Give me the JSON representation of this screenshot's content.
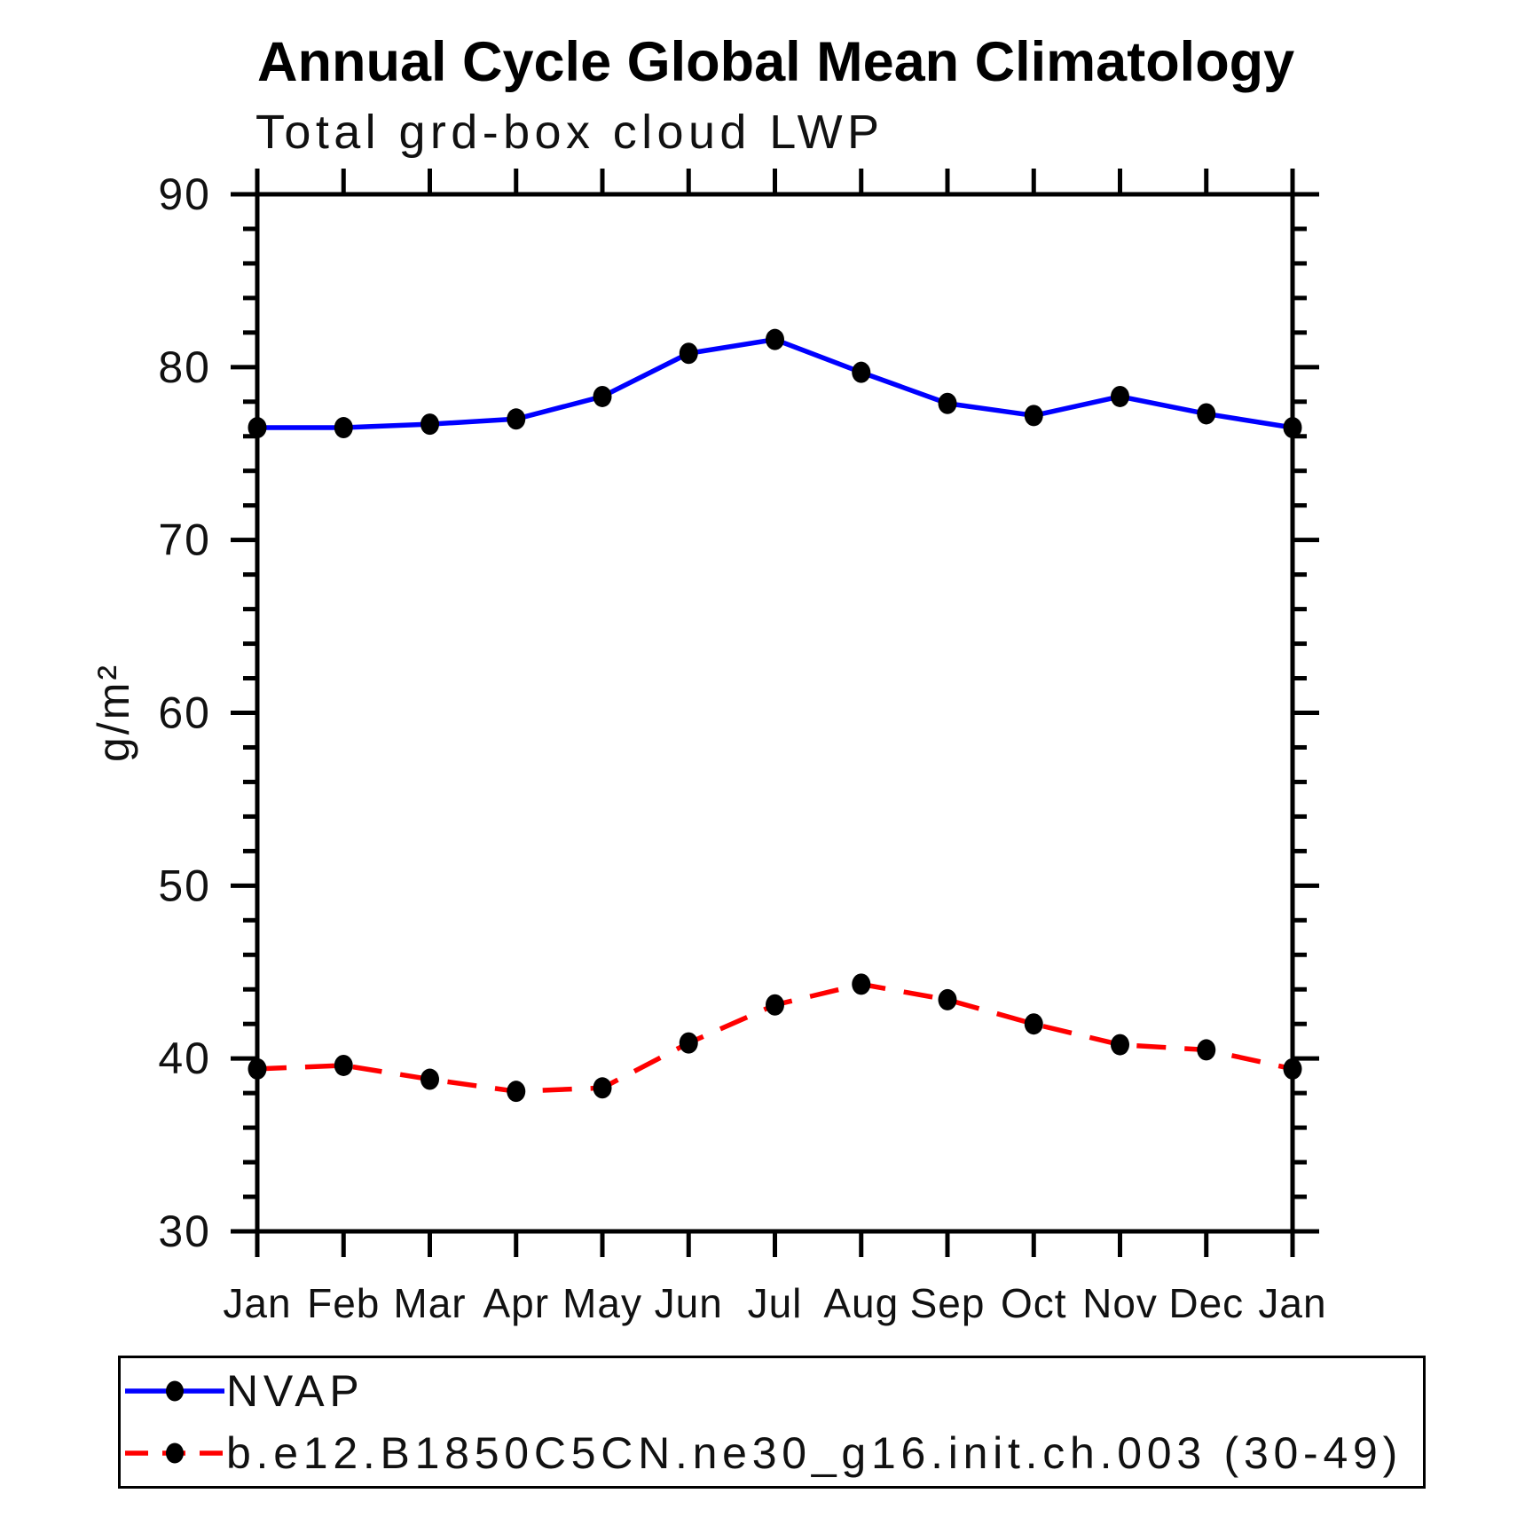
{
  "chart_data": {
    "type": "line",
    "title": "Annual Cycle Global Mean Climatology",
    "subtitle": "Total grd-box cloud LWP",
    "ylabel": "g/m²",
    "xlabel": "",
    "categories": [
      "Jan",
      "Feb",
      "Mar",
      "Apr",
      "May",
      "Jun",
      "Jul",
      "Aug",
      "Sep",
      "Oct",
      "Nov",
      "Dec",
      "Jan"
    ],
    "series": [
      {
        "name": "NVAP",
        "color": "#0000ff",
        "line_style": "solid",
        "marker": "filled-circle",
        "marker_color": "#000000",
        "values": [
          76.5,
          76.5,
          76.7,
          77.0,
          78.3,
          80.8,
          81.6,
          79.7,
          77.9,
          77.2,
          78.3,
          77.3,
          76.5
        ]
      },
      {
        "name": "b.e12.B1850C5CN.ne30_g16.init.ch.003 (30-49)",
        "color": "#ff0000",
        "line_style": "dashed",
        "marker": "filled-circle",
        "marker_color": "#000000",
        "values": [
          39.4,
          39.6,
          38.8,
          38.1,
          38.3,
          40.9,
          43.1,
          44.3,
          43.4,
          42.0,
          40.8,
          40.5,
          39.4
        ]
      }
    ],
    "ylim": [
      30,
      90
    ],
    "y_major_ticks": [
      30,
      40,
      50,
      60,
      70,
      80,
      90
    ],
    "y_minor_step": 2,
    "grid": false,
    "tick_direction": "out",
    "legend_position": "bottom-left"
  }
}
